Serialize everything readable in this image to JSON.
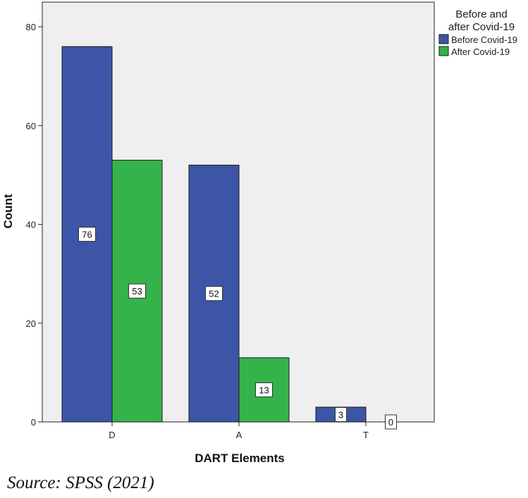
{
  "chart_data": {
    "type": "bar",
    "xlabel": "DART Elements",
    "ylabel": "Count",
    "categories": [
      "D",
      "A",
      "T"
    ],
    "ylim": [
      0,
      85
    ],
    "yticks": [
      0,
      20,
      40,
      60,
      80
    ],
    "series": [
      {
        "name": "Before Covid-19",
        "values": [
          76,
          52,
          3
        ],
        "color": "#3d55a6"
      },
      {
        "name": "After Covid-19",
        "values": [
          53,
          13,
          0
        ],
        "color": "#34b34a"
      }
    ],
    "legend": {
      "title_lines": [
        "Before and",
        "after Covid-19"
      ],
      "placement": "top-right, outside plot"
    },
    "plot_background": "#efefef",
    "grid": false
  },
  "source_note": "Source: SPSS (2021)"
}
